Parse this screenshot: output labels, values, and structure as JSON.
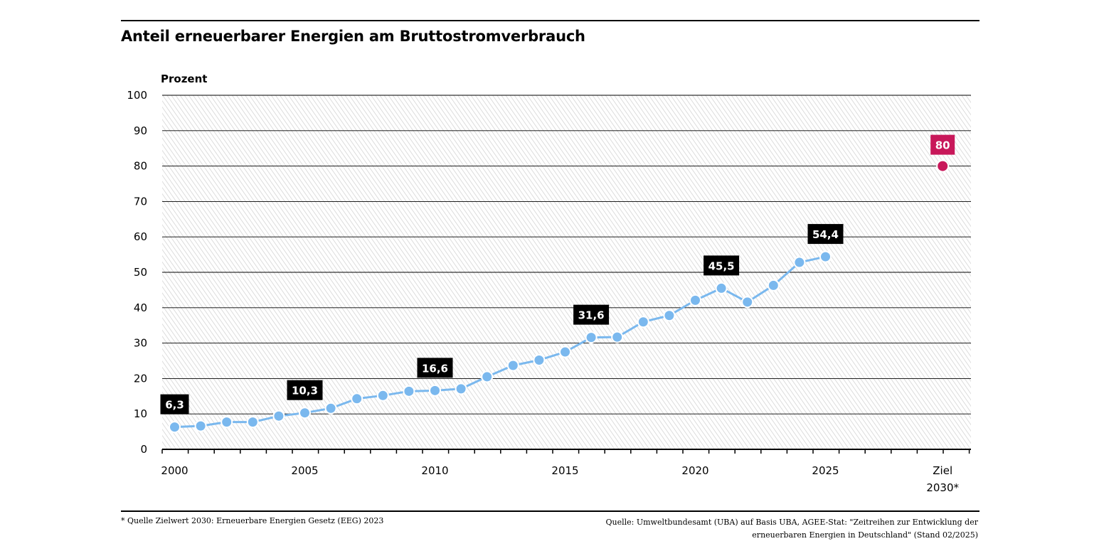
{
  "header": {
    "title": "Anteil erneuerbarer Energien am Bruttostromverbrauch"
  },
  "footer": {
    "left": "* Quelle Zielwert 2030: Erneuerbare Energien Gesetz (EEG) 2023",
    "right_line1": "Quelle: Umweltbundesamt (UBA) auf Basis UBA, AGEE-Stat: \"Zeitreihen zur Entwicklung der",
    "right_line2": "erneuerbaren Energien in Deutschland\" (Stand 02/2025)"
  },
  "colors": {
    "series": "#7ab8ee",
    "target": "#c8185a",
    "label_bg": "#000000",
    "hatch": "#d4d4d4"
  },
  "chart_data": {
    "type": "line",
    "ylabel": "Prozent",
    "ylim": [
      0,
      100
    ],
    "yticks": [
      0,
      10,
      20,
      30,
      40,
      50,
      60,
      70,
      80,
      90,
      100
    ],
    "xticks": [
      {
        "x": 2000,
        "label": "2000"
      },
      {
        "x": 2005,
        "label": "2005"
      },
      {
        "x": 2010,
        "label": "2010"
      },
      {
        "x": 2015,
        "label": "2015"
      },
      {
        "x": 2020,
        "label": "2020"
      },
      {
        "x": 2025,
        "label": "2025"
      }
    ],
    "target_tick_label": [
      "Ziel",
      "2030*"
    ],
    "grid": true,
    "series": [
      {
        "x": [
          2000,
          2001,
          2002,
          2003,
          2004,
          2005,
          2006,
          2007,
          2008,
          2009,
          2010,
          2011,
          2012,
          2013,
          2014,
          2015,
          2016,
          2017,
          2018,
          2019,
          2020,
          2021,
          2022,
          2023,
          2024,
          2025
        ],
        "values": [
          6.3,
          6.6,
          7.7,
          7.7,
          9.4,
          10.3,
          11.6,
          14.3,
          15.2,
          16.4,
          16.6,
          17.1,
          20.5,
          23.7,
          25.2,
          27.5,
          31.6,
          31.7,
          36.0,
          37.8,
          42.1,
          45.5,
          41.6,
          46.3,
          52.8,
          54.4
        ]
      }
    ],
    "labeled_points": [
      {
        "x": 2000,
        "value": 6.3,
        "label": "6,3"
      },
      {
        "x": 2005,
        "value": 10.3,
        "label": "10,3"
      },
      {
        "x": 2010,
        "value": 16.6,
        "label": "16,6"
      },
      {
        "x": 2016,
        "value": 31.6,
        "label": "31,6"
      },
      {
        "x": 2021,
        "value": 45.5,
        "label": "45,5"
      },
      {
        "x": 2025,
        "value": 54.4,
        "label": "54,4"
      }
    ],
    "target": {
      "value": 80,
      "label": "80"
    }
  }
}
